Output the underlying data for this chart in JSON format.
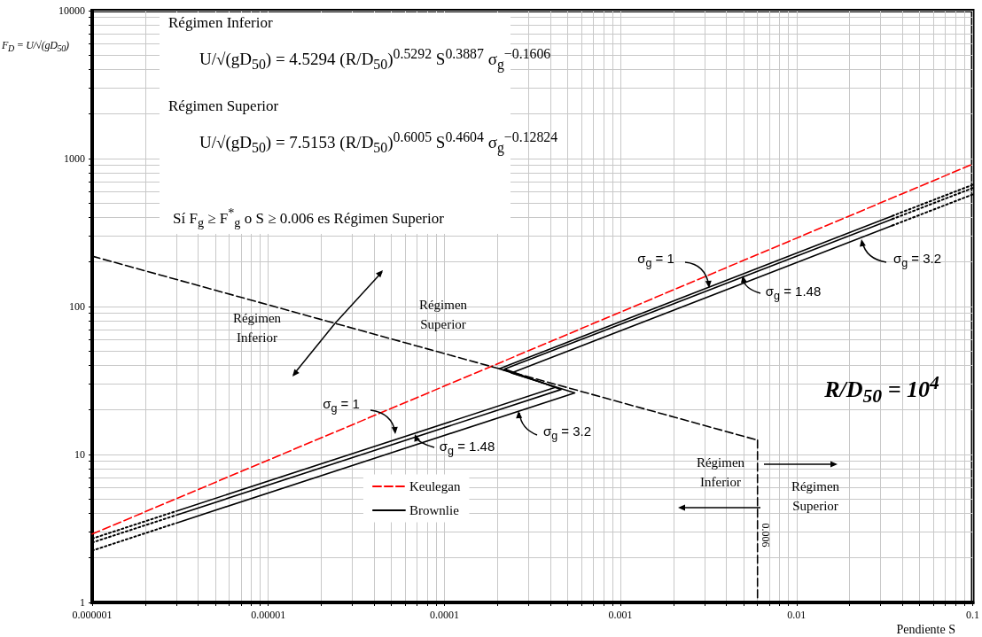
{
  "chart_data": {
    "type": "line",
    "xlabel": "Pendiente S",
    "ylabel": "F$_{D}$ = U/√(gD$_{50}$)",
    "log": "xy",
    "grid": true,
    "legend": "bottom left",
    "marker": "none",
    "xlim": [
      1e-06,
      0.1
    ],
    "xticks": [
      {
        "value": 1e-06,
        "label": "0.000001"
      },
      {
        "value": 1e-05,
        "label": "0.00001"
      },
      0.0001,
      0.001,
      0.01,
      0.1
    ],
    "ylim": [
      1,
      10000
    ],
    "yticks": [
      1,
      10,
      100,
      1000,
      10000
    ],
    "series": [
      {
        "name": "Keulegan",
        "color": "#ff0000",
        "line_style": "dashed",
        "x": [
          1e-06,
          0.1
        ],
        "values": [
          2.9,
          917
        ]
      },
      {
        "name": "Brownlie",
        "color": "#000000",
        "line_style": "solid",
        "x": [
          3e-06,
          0.00043,
          0.000205,
          0.035
        ],
        "values": [
          4.14,
          28.5,
          38,
          410
        ]
      },
      {
        "color": "#000000",
        "line_style": "solid",
        "x": [
          3e-06,
          0.00046,
          0.00022,
          0.035
        ],
        "values": [
          3.89,
          27.5,
          37.8,
          390
        ]
      },
      {
        "color": "#000000",
        "line_style": "solid",
        "x": [
          3e-06,
          0.00055,
          0.00024,
          0.035
        ],
        "values": [
          3.44,
          26.1,
          35.6,
          353
        ]
      },
      {
        "color": "#000000",
        "line_style": "dotted",
        "x": [
          1e-06,
          3e-06
        ],
        "values": [
          2.7,
          4.14
        ]
      },
      {
        "color": "#000000",
        "line_style": "dotted",
        "x": [
          1e-06,
          3e-06
        ],
        "values": [
          2.54,
          3.89
        ]
      },
      {
        "color": "#000000",
        "line_style": "dotted",
        "x": [
          1e-06,
          3e-06
        ],
        "values": [
          2.24,
          3.44
        ]
      },
      {
        "color": "#000000",
        "line_style": "dotted",
        "x": [
          0.035,
          0.1
        ],
        "values": [
          410,
          665
        ]
      },
      {
        "color": "#000000",
        "line_style": "dotted",
        "x": [
          0.035,
          0.1
        ],
        "values": [
          390,
          632
        ]
      },
      {
        "color": "#000000",
        "line_style": "dotted",
        "x": [
          0.035,
          0.1
        ],
        "values": [
          353,
          572
        ]
      },
      {
        "color": "#000000",
        "line_style": "dashed",
        "x": [
          1e-06,
          0.006
        ],
        "values": [
          219,
          12.5
        ]
      },
      {
        "color": "#000000",
        "line_style": "dashed",
        "x": [
          0.006,
          0.006
        ],
        "values": [
          12.5,
          1
        ]
      }
    ],
    "annotations": [
      "Régimen Inferior",
      "U/√(gD$_{50}$) = 4.5294 (R/D$_{50}$)$^{0.5292}$ S$^{0.3887}$ σ$_{g}$$^{−0.1606}$",
      "Régimen Superior",
      "U/√(gD$_{50}$) = 7.5153 (R/D$_{50}$)$^{0.6005}$ S$^{0.4604}$ σ$_{g}$$^{−0.12824}$",
      "Sí F$_{g}$ ≥ F$^{*}$$_{g}$ o S ≥ 0.006 es Régimen Superior",
      "σ$_{g}$ = 1",
      "σ$_{g}$ = 1.48",
      "σ$_{g}$ = 3.2",
      "σ$_{g}$ = 1",
      "σ$_{g}$ = 1.48",
      "σ$_{g}$ = 3.2",
      "Régimen Inferior",
      "Régimen Superior",
      "Régimen Inferior",
      "Régimen Superior",
      "0.006",
      "R/D$_{50}$ = 10$^{4}$"
    ]
  }
}
